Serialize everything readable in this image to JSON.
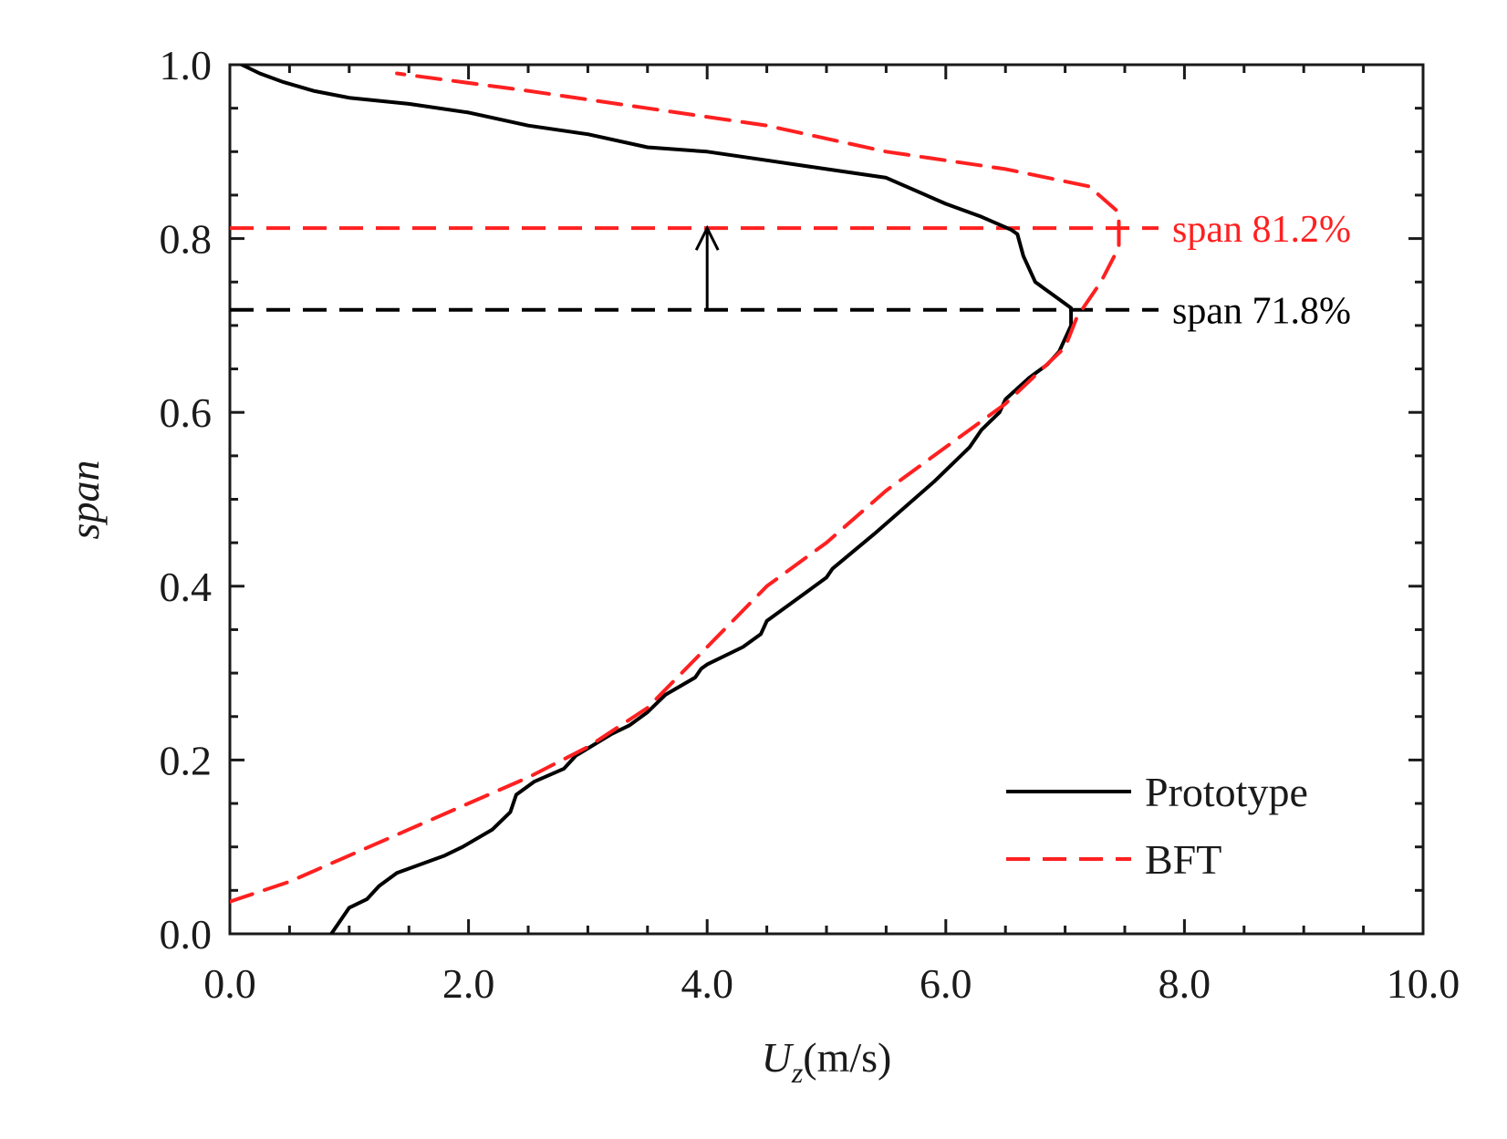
{
  "chart_data": {
    "type": "line",
    "title": "",
    "xlabel_main": "U",
    "xlabel_sub": "z",
    "xlabel_unit": "(m/s)",
    "ylabel": "span",
    "xlim": [
      0,
      10
    ],
    "ylim": [
      0,
      1
    ],
    "grid": false,
    "legend_position": "bottom-right",
    "x_ticks": [
      0,
      2,
      4,
      6,
      8,
      10
    ],
    "x_tick_labels": [
      "0.0",
      "2.0",
      "4.0",
      "6.0",
      "8.0",
      "10.0"
    ],
    "y_ticks": [
      0,
      0.2,
      0.4,
      0.6,
      0.8,
      1.0
    ],
    "y_tick_labels": [
      "0.0",
      "0.2",
      "0.4",
      "0.6",
      "0.8",
      "1.0"
    ],
    "series": [
      {
        "name": "Prototype",
        "style": "solid",
        "color": "#000000",
        "points": [
          [
            0.85,
            0.0
          ],
          [
            0.9,
            0.01
          ],
          [
            0.95,
            0.02
          ],
          [
            1.0,
            0.03
          ],
          [
            1.15,
            0.04
          ],
          [
            1.25,
            0.055
          ],
          [
            1.4,
            0.07
          ],
          [
            1.8,
            0.09
          ],
          [
            1.95,
            0.1
          ],
          [
            2.2,
            0.12
          ],
          [
            2.35,
            0.14
          ],
          [
            2.4,
            0.16
          ],
          [
            2.55,
            0.175
          ],
          [
            2.8,
            0.19
          ],
          [
            2.9,
            0.205
          ],
          [
            3.2,
            0.23
          ],
          [
            3.35,
            0.24
          ],
          [
            3.5,
            0.255
          ],
          [
            3.65,
            0.275
          ],
          [
            3.9,
            0.295
          ],
          [
            3.95,
            0.305
          ],
          [
            4.0,
            0.31
          ],
          [
            4.3,
            0.33
          ],
          [
            4.45,
            0.345
          ],
          [
            4.5,
            0.36
          ],
          [
            4.7,
            0.38
          ],
          [
            4.85,
            0.395
          ],
          [
            5.0,
            0.41
          ],
          [
            5.05,
            0.42
          ],
          [
            5.4,
            0.46
          ],
          [
            5.65,
            0.49
          ],
          [
            5.9,
            0.52
          ],
          [
            6.05,
            0.54
          ],
          [
            6.2,
            0.56
          ],
          [
            6.3,
            0.58
          ],
          [
            6.45,
            0.6
          ],
          [
            6.5,
            0.615
          ],
          [
            6.7,
            0.64
          ],
          [
            6.85,
            0.655
          ],
          [
            6.95,
            0.67
          ],
          [
            7.0,
            0.685
          ],
          [
            7.05,
            0.7
          ],
          [
            7.05,
            0.72
          ],
          [
            6.95,
            0.73
          ],
          [
            6.75,
            0.75
          ],
          [
            6.65,
            0.78
          ],
          [
            6.6,
            0.805
          ],
          [
            6.55,
            0.81
          ],
          [
            6.3,
            0.825
          ],
          [
            6.0,
            0.84
          ],
          [
            5.5,
            0.87
          ],
          [
            5.0,
            0.88
          ],
          [
            4.5,
            0.89
          ],
          [
            4.0,
            0.9
          ],
          [
            3.5,
            0.905
          ],
          [
            3.0,
            0.92
          ],
          [
            2.5,
            0.93
          ],
          [
            2.0,
            0.945
          ],
          [
            1.5,
            0.955
          ],
          [
            1.0,
            0.962
          ],
          [
            0.7,
            0.97
          ],
          [
            0.45,
            0.98
          ],
          [
            0.25,
            0.99
          ],
          [
            0.1,
            1.0
          ]
        ]
      },
      {
        "name": "BFT",
        "style": "dashed",
        "color": "#ff2020",
        "points": [
          [
            0.0,
            0.037
          ],
          [
            0.5,
            0.06
          ],
          [
            1.0,
            0.09
          ],
          [
            1.5,
            0.12
          ],
          [
            2.0,
            0.15
          ],
          [
            2.5,
            0.18
          ],
          [
            3.0,
            0.215
          ],
          [
            3.5,
            0.26
          ],
          [
            4.0,
            0.33
          ],
          [
            4.5,
            0.4
          ],
          [
            5.0,
            0.45
          ],
          [
            5.5,
            0.51
          ],
          [
            6.0,
            0.56
          ],
          [
            6.5,
            0.61
          ],
          [
            7.0,
            0.675
          ],
          [
            7.1,
            0.71
          ],
          [
            7.3,
            0.75
          ],
          [
            7.45,
            0.79
          ],
          [
            7.45,
            0.83
          ],
          [
            7.2,
            0.86
          ],
          [
            6.5,
            0.88
          ],
          [
            5.5,
            0.9
          ],
          [
            4.5,
            0.93
          ],
          [
            3.5,
            0.95
          ],
          [
            2.5,
            0.97
          ],
          [
            1.4,
            0.99
          ]
        ]
      }
    ],
    "reference_lines": [
      {
        "y": 0.812,
        "color": "#ff2020",
        "label": "span  81.2%"
      },
      {
        "y": 0.718,
        "color": "#000000",
        "label": "span  71.8%"
      }
    ],
    "arrow": {
      "x": 4.0,
      "from_y": 0.718,
      "to_y": 0.812
    }
  }
}
